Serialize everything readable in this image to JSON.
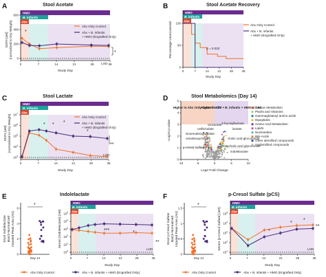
{
  "panels": {
    "A": {
      "letter": "A",
      "title": "Stool Acetate"
    },
    "B": {
      "letter": "B",
      "title": "Stool Acetate Recovery"
    },
    "C": {
      "letter": "C",
      "title": "Stool Lactate"
    },
    "D": {
      "letter": "D",
      "title": "Stool Metabolomics (Day 14)"
    },
    "E": {
      "letter": "E",
      "title": "Indolelactate"
    },
    "F": {
      "letter": "F",
      "title": "p-Cresol Sulfate (pCS)"
    }
  },
  "bands": {
    "hmo": "HMO",
    "inf": "B. infantis",
    "abx": "Abx"
  },
  "legend": {
    "ctrl": "Abx Only Control",
    "trt_line1": "Abx + B. infantis",
    "trt_line2": "+ HMO (Engrafted Only)",
    "bottom_ctrl": "Abx Only Control",
    "bottom_trt": "Abx + B. infantis + HMO (Engrafted Only)"
  },
  "colors": {
    "ctrl": "#f07028",
    "trt": "#4a2a7a",
    "hmo": "#6a2c8f",
    "inf": "#1aa39a",
    "abx": "#e0482c"
  },
  "labels": {
    "studyday": "Study Day",
    "lod": "LOD",
    "a_y1": "SCFA [uM]",
    "a_y2": "(normalized to Dry Weight)",
    "b_y": "Percentage Unrecovered",
    "c_y1": "SCFA [uM]",
    "c_y2": "(normalized to Dry Weight)",
    "d_x": "Log2 Fold Change",
    "d_y": "-Log10 p-value",
    "e_y1": "Stool Indolelactate",
    "e_y2": "Batch-Normalized",
    "e_y3": "Imputed Peak Area (AU)",
    "e_y4": "Serum [Indolelactate] (nM)",
    "f_y1": "Stool p-Cresol Sulfate",
    "f_y2": "Batch-Normalized",
    "f_y3": "Imputed Peak Area (AU)",
    "f_y4": "Serum [p-Cresol Sulfate] (nM)",
    "day14": "Day 14",
    "pval": "p = 0.032",
    "d_box1": "Higher in Abx Only Control n=77",
    "d_box2": "Higher in Abx + B. infantis + HMO n=154"
  },
  "d_legend": [
    "Carbon Metabolism",
    "Plants and Vitamins",
    "Gammaglutamyl amino acids",
    "Dipeptides",
    "Amino Acid Metabolism",
    "Lipids",
    "Nucleotides",
    "Bile Acids",
    "Other identified compounds",
    "Unidentified compounds"
  ],
  "d_legend_colors": [
    "#d24a2a",
    "#9dd15a",
    "#1a8a7a",
    "#e8c020",
    "#8a2a9a",
    "#d04fa0",
    "#5ab0d8",
    "#e08a30",
    "#2a4a9a",
    "#bbbbbb"
  ],
  "d_labels": [
    "urocanate",
    "ursocholate",
    "isoursodeoxycholate",
    "3-fucosyllactose",
    "lactate",
    "ursodeoxycholate",
    "cholic acid glucuronide",
    "deoxycholic acid glucuronide",
    "p-cresol sulfate",
    "indolelactate"
  ],
  "chart_data": [
    {
      "panel": "A",
      "type": "line",
      "title": "Stool Acetate",
      "xlabel": "Study Day",
      "x": [
        0,
        3,
        7,
        14,
        28,
        35
      ],
      "series": [
        {
          "name": "Abx Only Control",
          "values": [
            280,
            200,
            135,
            150,
            170,
            165
          ]
        },
        {
          "name": "Abx + B. infantis + HMO (Engrafted Only)",
          "values": [
            220,
            180,
            175,
            200,
            185,
            180
          ]
        }
      ],
      "ylim": [
        0,
        600
      ],
      "yticks": [
        0,
        200,
        400,
        600
      ],
      "xticks": [
        0,
        7,
        14,
        21,
        28,
        35
      ]
    },
    {
      "panel": "B",
      "type": "line",
      "title": "Stool Acetate Recovery",
      "xlabel": "Study Day",
      "ylabel": "Percentage Unrecovered",
      "series": [
        {
          "name": "Abx Only Control",
          "x": [
            0,
            3,
            5,
            7,
            10,
            14,
            20,
            25,
            35
          ],
          "values": [
            100,
            100,
            75,
            55,
            45,
            30,
            25,
            20,
            20
          ]
        },
        {
          "name": "Abx + B. infantis + HMO",
          "x": [
            0,
            5,
            7,
            35
          ],
          "values": [
            100,
            100,
            0,
            0
          ]
        }
      ],
      "ylim": [
        0,
        100
      ],
      "yticks": [
        0,
        50,
        100
      ],
      "xticks": [
        0,
        7,
        14,
        21,
        28,
        35
      ],
      "annotation": "p = 0.032"
    },
    {
      "panel": "C",
      "type": "line",
      "title": "Stool Lactate",
      "xlabel": "Study Day",
      "x": [
        0,
        3,
        7,
        10,
        14,
        21,
        28,
        35
      ],
      "series": [
        {
          "name": "Abx Only Control",
          "values": [
            1000,
            200000,
            120000,
            40000,
            6000,
            3000,
            1500,
            1200
          ]
        },
        {
          "name": "Abx + B. infantis + HMO (Engrafted Only)",
          "values": [
            1200,
            300000,
            400000,
            300000,
            200000,
            100000,
            90000,
            60000
          ]
        }
      ],
      "yscale": "log",
      "yticks": [
        "10^3",
        "10^4",
        "10^5",
        "10^6",
        "10^7"
      ],
      "xticks": [
        0,
        7,
        14,
        21,
        28,
        35
      ]
    },
    {
      "panel": "D",
      "type": "scatter",
      "title": "Stool Metabolomics (Day 14)",
      "xlabel": "Log2 Fold Change",
      "ylabel": "-Log10 p-value",
      "xlim": [
        -10,
        10
      ],
      "ylim": [
        0,
        5
      ],
      "xticks": [
        -10,
        -5,
        0,
        5,
        10
      ],
      "yticks": [
        0,
        1,
        2,
        3,
        4,
        5
      ],
      "counts": {
        "Higher in Abx Only Control": 77,
        "Higher in Abx + B. infantis + HMO": 154
      }
    },
    {
      "panel": "E_stool",
      "type": "scatter",
      "categories": [
        "Abx Only Control",
        "Abx + B. infantis + HMO"
      ],
      "ylim": [
        0,
        6
      ],
      "yticks": [
        0,
        2,
        4,
        6
      ]
    },
    {
      "panel": "E_serum",
      "type": "line",
      "title": "Indolelactate",
      "x": [
        0,
        3,
        7,
        10,
        14,
        21,
        28,
        35
      ],
      "series": [
        {
          "name": "Abx Only Control",
          "values": [
            900,
            700,
            500,
            400,
            300,
            300,
            350,
            300
          ]
        },
        {
          "name": "Abx + B. infantis + HMO (Engrafted Only)",
          "values": [
            900,
            1500,
            3000,
            4000,
            5000,
            4500,
            4000,
            3500
          ]
        }
      ],
      "yscale": "log",
      "yticks": [
        "10^0",
        "10^1",
        "10^2",
        "10^3",
        "10^4",
        "10^5"
      ]
    },
    {
      "panel": "F_stool",
      "type": "scatter",
      "categories": [
        "Abx Only Control",
        "Abx + B. infantis + HMO"
      ],
      "ylim": [
        0,
        1
      ],
      "yticks": [
        0,
        0.5,
        1.0,
        1.5
      ]
    },
    {
      "panel": "F_serum",
      "type": "line",
      "title": "p-Cresol Sulfate (pCS)",
      "x": [
        0,
        7,
        14,
        21,
        28,
        35
      ],
      "series": [
        {
          "name": "Abx Only Control",
          "values": [
            3000,
            200,
            2000,
            4000,
            6000,
            7000
          ]
        },
        {
          "name": "Abx + B. infantis + HMO (Engrafted Only)",
          "values": [
            3000,
            50,
            400,
            1000,
            2500,
            3000
          ]
        }
      ],
      "yscale": "log",
      "yticks": [
        "10^1",
        "10^2",
        "10^3",
        "10^4",
        "10^5"
      ]
    }
  ]
}
